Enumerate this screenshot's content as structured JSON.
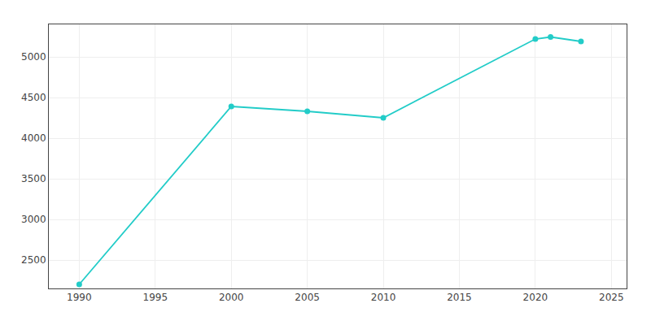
{
  "chart_data": {
    "type": "line",
    "x": [
      1990,
      2000,
      2005,
      2010,
      2020,
      2021,
      2023
    ],
    "values": [
      2200,
      4390,
      4330,
      4250,
      5220,
      5245,
      5190
    ],
    "color": "#22ccc8",
    "marker": "circle",
    "xlim": [
      1988,
      2026
    ],
    "ylim": [
      2150,
      5400
    ],
    "xticks": [
      1990,
      1995,
      2000,
      2005,
      2010,
      2015,
      2020,
      2025
    ],
    "yticks": [
      2500,
      3000,
      3500,
      4000,
      4500,
      5000
    ],
    "grid": true
  }
}
